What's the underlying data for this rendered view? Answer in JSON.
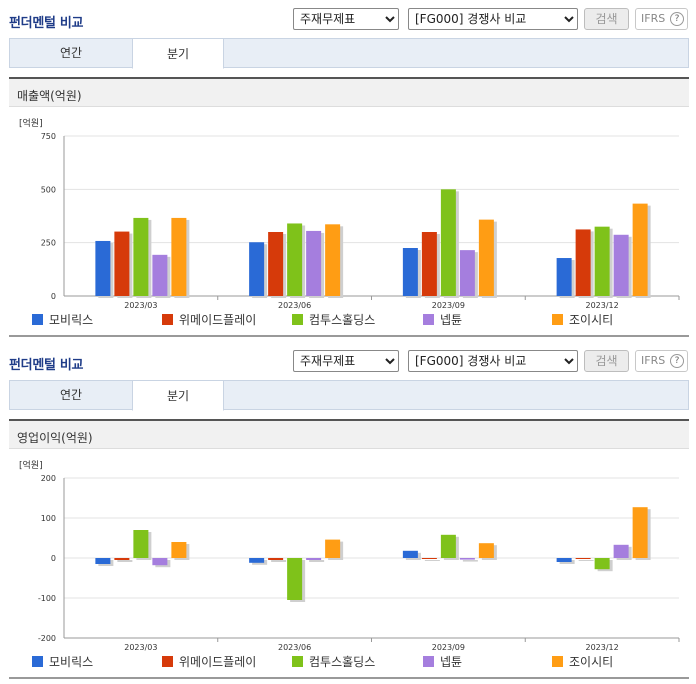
{
  "header": {
    "title": "펀더멘털 비교",
    "select_statement": "주재무제표",
    "select_compare": "[FG000] 경쟁사 비교",
    "search_label": "검색",
    "ifrs_label": "IFRS",
    "help_glyph": "?"
  },
  "tabs": [
    {
      "label": "연간",
      "active": false
    },
    {
      "label": "분기",
      "active": true
    }
  ],
  "colors": {
    "series": [
      "#2a6ad6",
      "#d63a0a",
      "#7fc21a",
      "#a57ede",
      "#ff9d14"
    ],
    "grid": "#e3e3e3",
    "axis": "#999999"
  },
  "chart_data": [
    {
      "type": "bar",
      "section_title": "매출액(억원)",
      "unit_label": "[억원]",
      "categories": [
        "2023/03",
        "2023/06",
        "2023/09",
        "2023/12"
      ],
      "ylim": [
        0,
        750
      ],
      "yticks": [
        "750",
        "500",
        "250",
        "0"
      ],
      "ytick_values": [
        750,
        500,
        250,
        0
      ],
      "grid": true,
      "legend_position": "bottom",
      "series": [
        {
          "name": "모비릭스",
          "values": [
            258,
            252,
            225,
            178
          ]
        },
        {
          "name": "위메이드플레이",
          "values": [
            302,
            300,
            300,
            312
          ]
        },
        {
          "name": "컴투스홀딩스",
          "values": [
            366,
            340,
            500,
            325
          ]
        },
        {
          "name": "넵튠",
          "values": [
            193,
            305,
            215,
            287
          ]
        },
        {
          "name": "조이시티",
          "values": [
            366,
            336,
            358,
            433
          ]
        }
      ]
    },
    {
      "type": "bar",
      "section_title": "영업이익(억원)",
      "unit_label": "[억원]",
      "categories": [
        "2023/03",
        "2023/06",
        "2023/09",
        "2023/12"
      ],
      "ylim": [
        -200,
        200
      ],
      "yticks": [
        "200",
        "100",
        "0",
        "-100",
        "-200"
      ],
      "ytick_values": [
        200,
        100,
        0,
        -100,
        -200
      ],
      "grid": true,
      "legend_position": "bottom",
      "series": [
        {
          "name": "모비릭스",
          "values": [
            -15,
            -12,
            18,
            -10
          ]
        },
        {
          "name": "위메이드플레이",
          "values": [
            -5,
            -5,
            -2,
            -2
          ]
        },
        {
          "name": "컴투스홀딩스",
          "values": [
            70,
            -105,
            58,
            -28
          ]
        },
        {
          "name": "넵튠",
          "values": [
            -18,
            -5,
            -4,
            33
          ]
        },
        {
          "name": "조이시티",
          "values": [
            40,
            46,
            37,
            127
          ]
        }
      ]
    }
  ]
}
